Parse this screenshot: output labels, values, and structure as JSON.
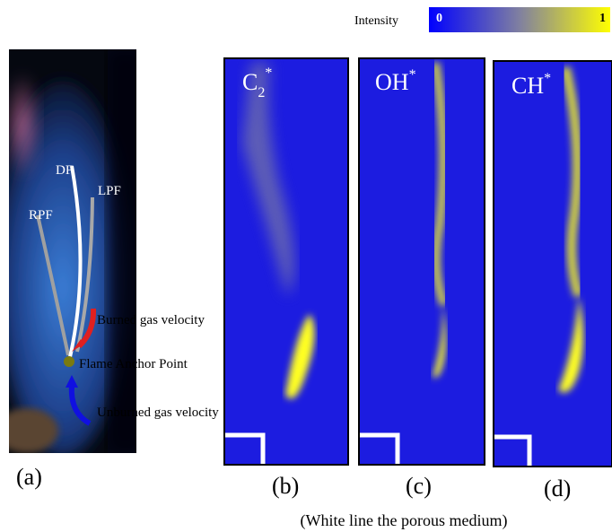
{
  "colorbar": {
    "label": "Intensity",
    "min": 0,
    "max": 1
  },
  "panel_a": {
    "fronts": [
      "DF",
      "LPF",
      "RPF"
    ],
    "annotations": [
      "Burned gas velocity",
      "Flame Anchor Point",
      "Unburned gas velocity"
    ],
    "caption": "(a)"
  },
  "panels": [
    {
      "species": {
        "base": "C",
        "sub": "2",
        "sup": "*"
      },
      "caption": "(b)"
    },
    {
      "species": {
        "base": "OH",
        "sup": "*"
      },
      "caption": "(c)"
    },
    {
      "species": {
        "base": "CH",
        "sup": "*"
      },
      "caption": "(d)"
    }
  ],
  "footnote": "(White line the porous medium)"
}
